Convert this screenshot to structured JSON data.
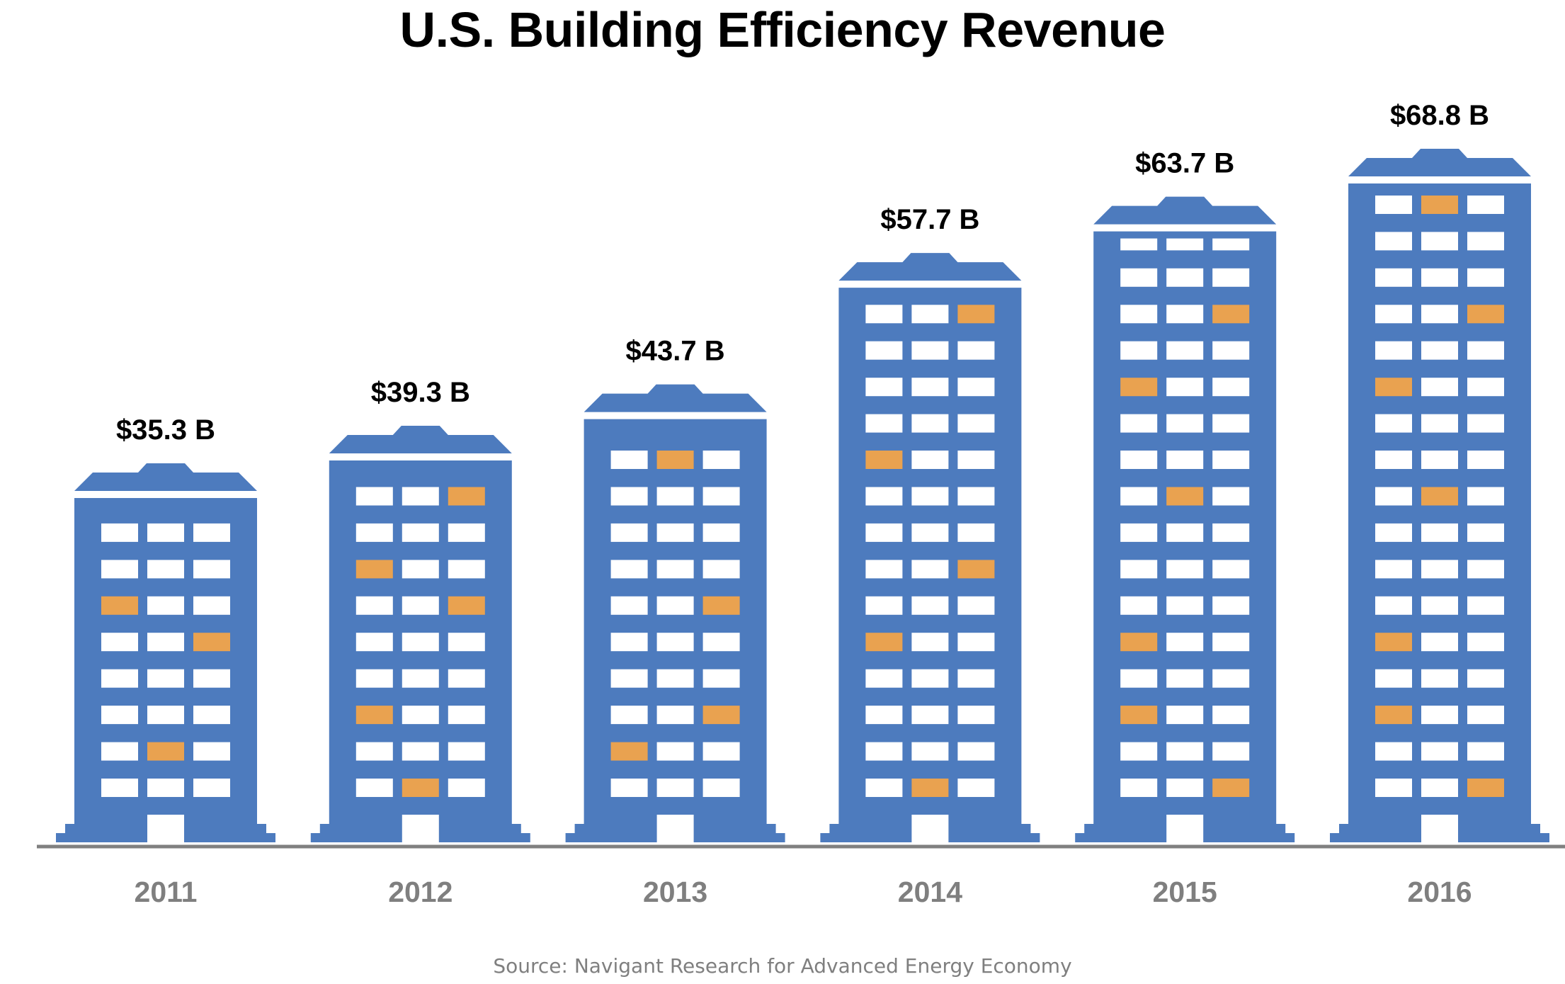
{
  "chart_data": {
    "type": "bar",
    "title": "U.S. Building Efficiency Revenue",
    "source": "Source: Navigant Research for Advanced Energy Economy",
    "xlabel": "",
    "ylabel": "",
    "unit": "$ B",
    "categories": [
      "2011",
      "2012",
      "2013",
      "2014",
      "2015",
      "2016"
    ],
    "values": [
      35.3,
      39.3,
      43.7,
      57.7,
      63.7,
      68.8
    ],
    "data_labels": [
      "$35.3 B",
      "$39.3 B",
      "$43.7 B",
      "$57.7 B",
      "$63.7 B",
      "$68.8 B"
    ],
    "grid": false,
    "legend": "none",
    "mark_style": "building",
    "colors": {
      "building": "#4d7bbe",
      "window": "#ffffff",
      "window_lit": "#e9a250",
      "axis": "#808080",
      "year_label": "#7f7f7f",
      "value_label": "#000000"
    },
    "window_rows": [
      8,
      9,
      10,
      14,
      16,
      17
    ],
    "lit_windows": [
      [
        [
          2,
          0
        ],
        [
          3,
          2
        ],
        [
          6,
          1
        ]
      ],
      [
        [
          0,
          2
        ],
        [
          2,
          0
        ],
        [
          3,
          2
        ],
        [
          6,
          0
        ],
        [
          8,
          1
        ]
      ],
      [
        [
          0,
          1
        ],
        [
          4,
          2
        ],
        [
          7,
          2
        ],
        [
          8,
          0
        ]
      ],
      [
        [
          0,
          2
        ],
        [
          4,
          0
        ],
        [
          7,
          2
        ],
        [
          9,
          0
        ],
        [
          13,
          1
        ]
      ],
      [
        [
          2,
          2
        ],
        [
          4,
          0
        ],
        [
          7,
          1
        ],
        [
          11,
          0
        ],
        [
          13,
          0
        ],
        [
          15,
          2
        ]
      ],
      [
        [
          0,
          1
        ],
        [
          3,
          2
        ],
        [
          5,
          0
        ],
        [
          8,
          1
        ],
        [
          12,
          0
        ],
        [
          14,
          0
        ],
        [
          16,
          2
        ]
      ]
    ]
  }
}
